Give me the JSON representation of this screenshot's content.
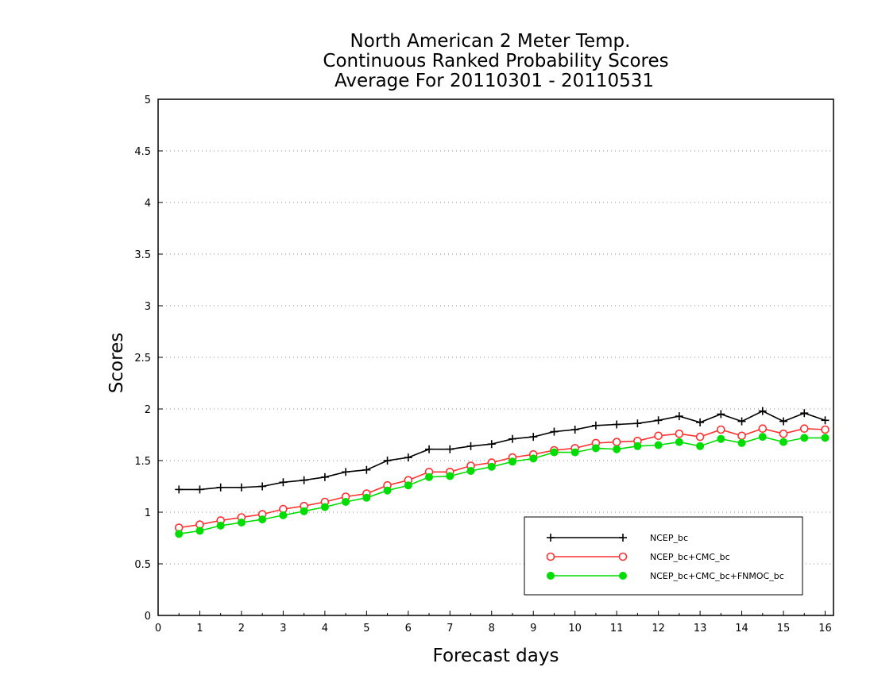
{
  "chart_data": {
    "type": "line",
    "title_lines": [
      "North American 2 Meter Temp.",
      "Continuous Ranked Probability Scores",
      "Average For 20110301 - 20110531"
    ],
    "xlabel": "Forecast days",
    "ylabel": "Scores",
    "xlim": [
      0,
      16.2
    ],
    "ylim": [
      0,
      5
    ],
    "xticks": [
      0,
      1,
      2,
      3,
      4,
      5,
      6,
      7,
      8,
      9,
      10,
      11,
      12,
      13,
      14,
      15,
      16
    ],
    "xtick_labels": [
      "0",
      "1",
      "2",
      "3",
      "4",
      "5",
      "6",
      "7",
      "8",
      "9",
      "10",
      "11",
      "12",
      "13",
      "14",
      "15",
      "16"
    ],
    "yticks": [
      0,
      0.5,
      1,
      1.5,
      2,
      2.5,
      3,
      3.5,
      4,
      4.5,
      5
    ],
    "ytick_labels": [
      "0",
      "0.5",
      "1",
      "1.5",
      "2",
      "2.5",
      "3",
      "3.5",
      "4",
      "4.5",
      "5"
    ],
    "grid": "horizontal dotted",
    "legend_position": "bottom-right",
    "x": [
      0.5,
      1,
      1.5,
      2,
      2.5,
      3,
      3.5,
      4,
      4.5,
      5,
      5.5,
      6,
      6.5,
      7,
      7.5,
      8,
      8.5,
      9,
      9.5,
      10,
      10.5,
      11,
      11.5,
      12,
      12.5,
      13,
      13.5,
      14,
      14.5,
      15,
      15.5,
      16
    ],
    "series": [
      {
        "name": "NCEP_bc",
        "color": "#000000",
        "marker": "plus",
        "values": [
          1.22,
          1.22,
          1.24,
          1.24,
          1.25,
          1.29,
          1.31,
          1.34,
          1.39,
          1.41,
          1.5,
          1.53,
          1.61,
          1.61,
          1.64,
          1.66,
          1.71,
          1.73,
          1.78,
          1.8,
          1.84,
          1.85,
          1.86,
          1.89,
          1.93,
          1.87,
          1.95,
          1.88,
          1.98,
          1.88,
          1.96,
          1.89
        ]
      },
      {
        "name": "NCEP_bc+CMC_bc",
        "color": "#ff3030",
        "marker": "open-circle",
        "values": [
          0.85,
          0.88,
          0.92,
          0.95,
          0.98,
          1.03,
          1.06,
          1.1,
          1.15,
          1.18,
          1.26,
          1.31,
          1.39,
          1.39,
          1.45,
          1.48,
          1.53,
          1.56,
          1.6,
          1.62,
          1.67,
          1.68,
          1.69,
          1.74,
          1.76,
          1.73,
          1.8,
          1.74,
          1.81,
          1.76,
          1.81,
          1.8
        ]
      },
      {
        "name": "NCEP_bc+CMC_bc+FNMOC_bc",
        "color": "#00dd00",
        "marker": "filled-circle",
        "values": [
          0.79,
          0.82,
          0.87,
          0.9,
          0.93,
          0.97,
          1.01,
          1.05,
          1.1,
          1.14,
          1.21,
          1.26,
          1.34,
          1.35,
          1.4,
          1.44,
          1.49,
          1.52,
          1.58,
          1.58,
          1.62,
          1.61,
          1.64,
          1.65,
          1.68,
          1.64,
          1.71,
          1.67,
          1.73,
          1.68,
          1.72,
          1.72
        ]
      }
    ]
  }
}
